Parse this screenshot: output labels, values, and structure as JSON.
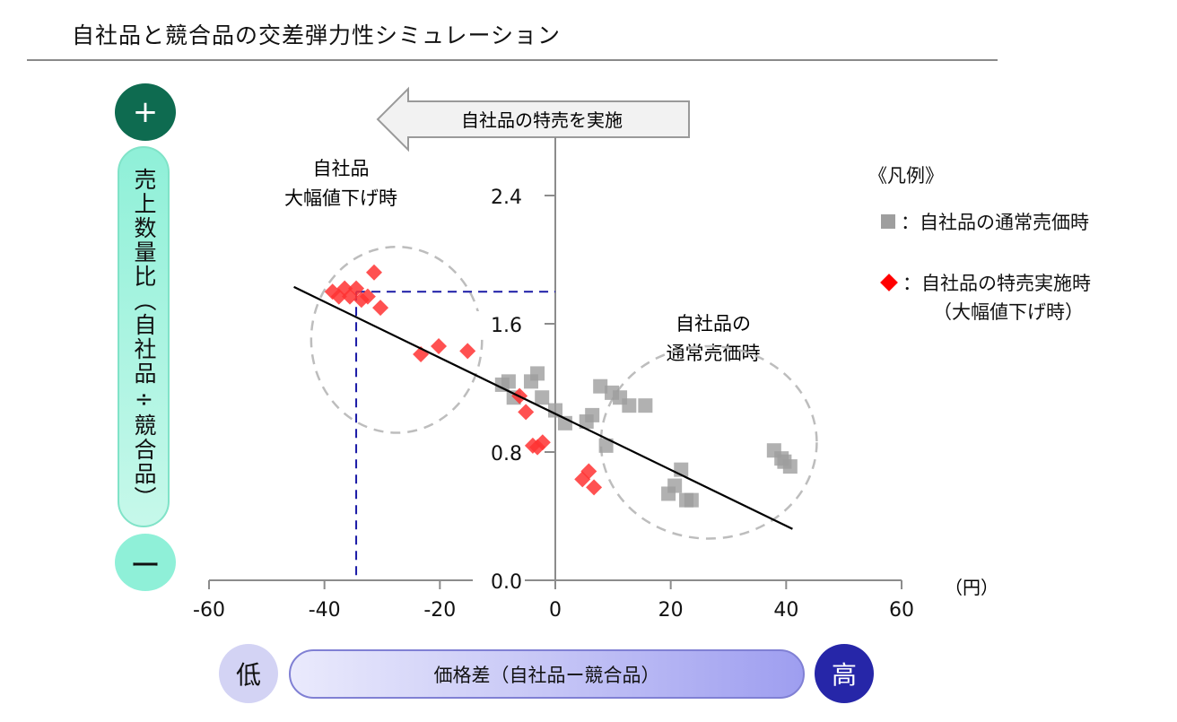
{
  "page": {
    "title": "自社品と競合品の交差弾力性シミュレーション"
  },
  "y_axis_box": {
    "plus_label": "+",
    "label": "売上数量比（自社品÷競合品）",
    "minus_label": "ー"
  },
  "x_axis_box": {
    "low_label": "低",
    "label": "価格差（自社品ー競合品）",
    "high_label": "高"
  },
  "legend": {
    "header": "《凡例》",
    "items": [
      {
        "marker": "gray-square",
        "label": "：自社品の通常売価時",
        "color": "#9e9e9e"
      },
      {
        "marker": "red-diamond",
        "label": "：自社品の特売実施時",
        "sublabel": "（大幅値下げ時）",
        "color": "#ff0000"
      }
    ]
  },
  "annotations": {
    "arrow_label": "自社品の特売を実施",
    "cluster_left": [
      "自社品",
      "大幅値下げ時"
    ],
    "cluster_right": [
      "自社品の",
      "通常売価時"
    ]
  },
  "chart_data": {
    "type": "scatter",
    "title": "自社品と競合品の交差弾力性シミュレーション",
    "xlabel": "価格差（自社品ー競合品）",
    "ylabel": "売上数量比（自社品÷競合品）",
    "x_unit": "（円）",
    "xlim": [
      -60,
      60
    ],
    "ylim": [
      0,
      2.4
    ],
    "x_ticks": [
      "-60",
      "-40",
      "-20",
      "0",
      "20",
      "40",
      "60"
    ],
    "y_ticks": [
      "0.0",
      "0.8",
      "1.6",
      "2.4"
    ],
    "x_tick_values": [
      -60,
      -40,
      -20,
      0,
      20,
      40,
      60
    ],
    "y_tick_values": [
      0,
      0.8,
      1.6,
      2.4
    ],
    "grid": false,
    "legend_position": "right",
    "series": [
      {
        "name": "自社品の通常売価時",
        "marker": "square",
        "color": "#9e9e9e",
        "points": [
          [
            -9.2,
            1.22
          ],
          [
            -8.1,
            1.24
          ],
          [
            -4.2,
            1.24
          ],
          [
            -3.1,
            1.29
          ],
          [
            -7.2,
            1.14
          ],
          [
            -2.3,
            1.14
          ],
          [
            0.0,
            1.06
          ],
          [
            1.7,
            0.98
          ],
          [
            5.4,
            0.99
          ],
          [
            6.4,
            1.03
          ],
          [
            7.8,
            1.21
          ],
          [
            9.8,
            1.17
          ],
          [
            11.2,
            1.14
          ],
          [
            12.8,
            1.09
          ],
          [
            15.6,
            1.09
          ],
          [
            8.8,
            0.84
          ],
          [
            21.8,
            0.69
          ],
          [
            20.7,
            0.59
          ],
          [
            19.6,
            0.54
          ],
          [
            22.7,
            0.5
          ],
          [
            23.6,
            0.5
          ],
          [
            37.9,
            0.81
          ],
          [
            39.2,
            0.76
          ],
          [
            40.7,
            0.71
          ],
          [
            39.7,
            0.74
          ]
        ]
      },
      {
        "name": "自社品の特売実施時（大幅値下げ時）",
        "marker": "diamond",
        "color": "#ff3333",
        "points": [
          [
            -31.4,
            1.92
          ],
          [
            -38.6,
            1.8
          ],
          [
            -36.5,
            1.82
          ],
          [
            -34.5,
            1.82
          ],
          [
            -37.5,
            1.77
          ],
          [
            -35.6,
            1.77
          ],
          [
            -33.6,
            1.75
          ],
          [
            -32.5,
            1.77
          ],
          [
            -30.3,
            1.7
          ],
          [
            -23.3,
            1.41
          ],
          [
            -20.2,
            1.46
          ],
          [
            -15.2,
            1.43
          ],
          [
            -6.2,
            1.15
          ],
          [
            -5.1,
            1.05
          ],
          [
            -3.9,
            0.84
          ],
          [
            -3.1,
            0.83
          ],
          [
            -2.2,
            0.86
          ],
          [
            4.7,
            0.63
          ],
          [
            5.8,
            0.68
          ],
          [
            6.7,
            0.58
          ]
        ]
      }
    ],
    "trendline": {
      "x": [
        -45.3,
        41.1
      ],
      "y": [
        1.83,
        0.32
      ],
      "color": "#000000"
    },
    "reference_lines": {
      "x": -34.5,
      "y": 1.8,
      "color": "#1a1aa6",
      "style": "dashed"
    },
    "highlight_ellipses": [
      {
        "label": "自社品 大幅値下げ時",
        "cx": -27.5,
        "cy": 1.5,
        "rx": 14.8,
        "ry": 0.58
      },
      {
        "label": "自社品の通常売価時",
        "cx": 26.6,
        "cy": 0.86,
        "rx": 18.7,
        "ry": 0.6
      }
    ]
  }
}
